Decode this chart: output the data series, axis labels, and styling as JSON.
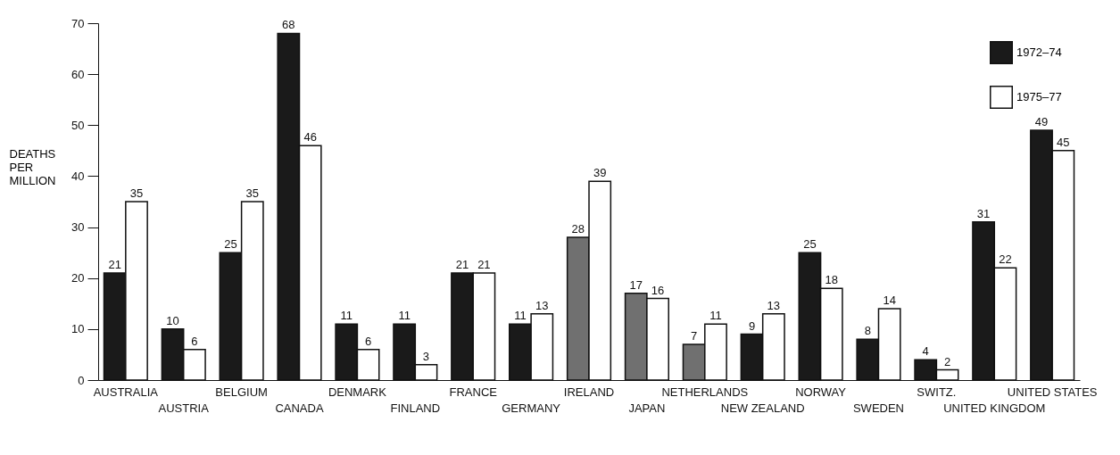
{
  "chart_data": {
    "type": "bar",
    "ylabel": "DEATHS PER MILLION",
    "categories": [
      "AUSTRALIA",
      "AUSTRIA",
      "BELGIUM",
      "CANADA",
      "DENMARK",
      "FINLAND",
      "FRANCE",
      "GERMANY",
      "IRELAND",
      "JAPAN",
      "NETHERLANDS",
      "NEW ZEALAND",
      "NORWAY",
      "SWEDEN",
      "SWITZ.",
      "UNITED KINGDOM",
      "UNITED STATES"
    ],
    "series": [
      {
        "name": "1972–74",
        "color": "#1a1a1a",
        "colors": [
          "#1a1a1a",
          "#1a1a1a",
          "#1a1a1a",
          "#1a1a1a",
          "#1a1a1a",
          "#1a1a1a",
          "#1a1a1a",
          "#1a1a1a",
          "#707070",
          "#707070",
          "#707070",
          "#1a1a1a",
          "#1a1a1a",
          "#1a1a1a",
          "#1a1a1a",
          "#1a1a1a",
          "#1a1a1a"
        ],
        "values": [
          21,
          10,
          25,
          68,
          11,
          11,
          21,
          11,
          28,
          17,
          7,
          9,
          25,
          8,
          4,
          31,
          49
        ]
      },
      {
        "name": "1975–77",
        "color": "#ffffff",
        "values": [
          35,
          6,
          35,
          46,
          6,
          3,
          21,
          13,
          39,
          16,
          11,
          13,
          18,
          14,
          2,
          22,
          45
        ]
      }
    ],
    "ylim": [
      0,
      70
    ],
    "yticks": [
      0,
      10,
      20,
      30,
      40,
      50,
      60,
      70
    ],
    "grid": false,
    "legend": "top right",
    "data_labels": true
  }
}
